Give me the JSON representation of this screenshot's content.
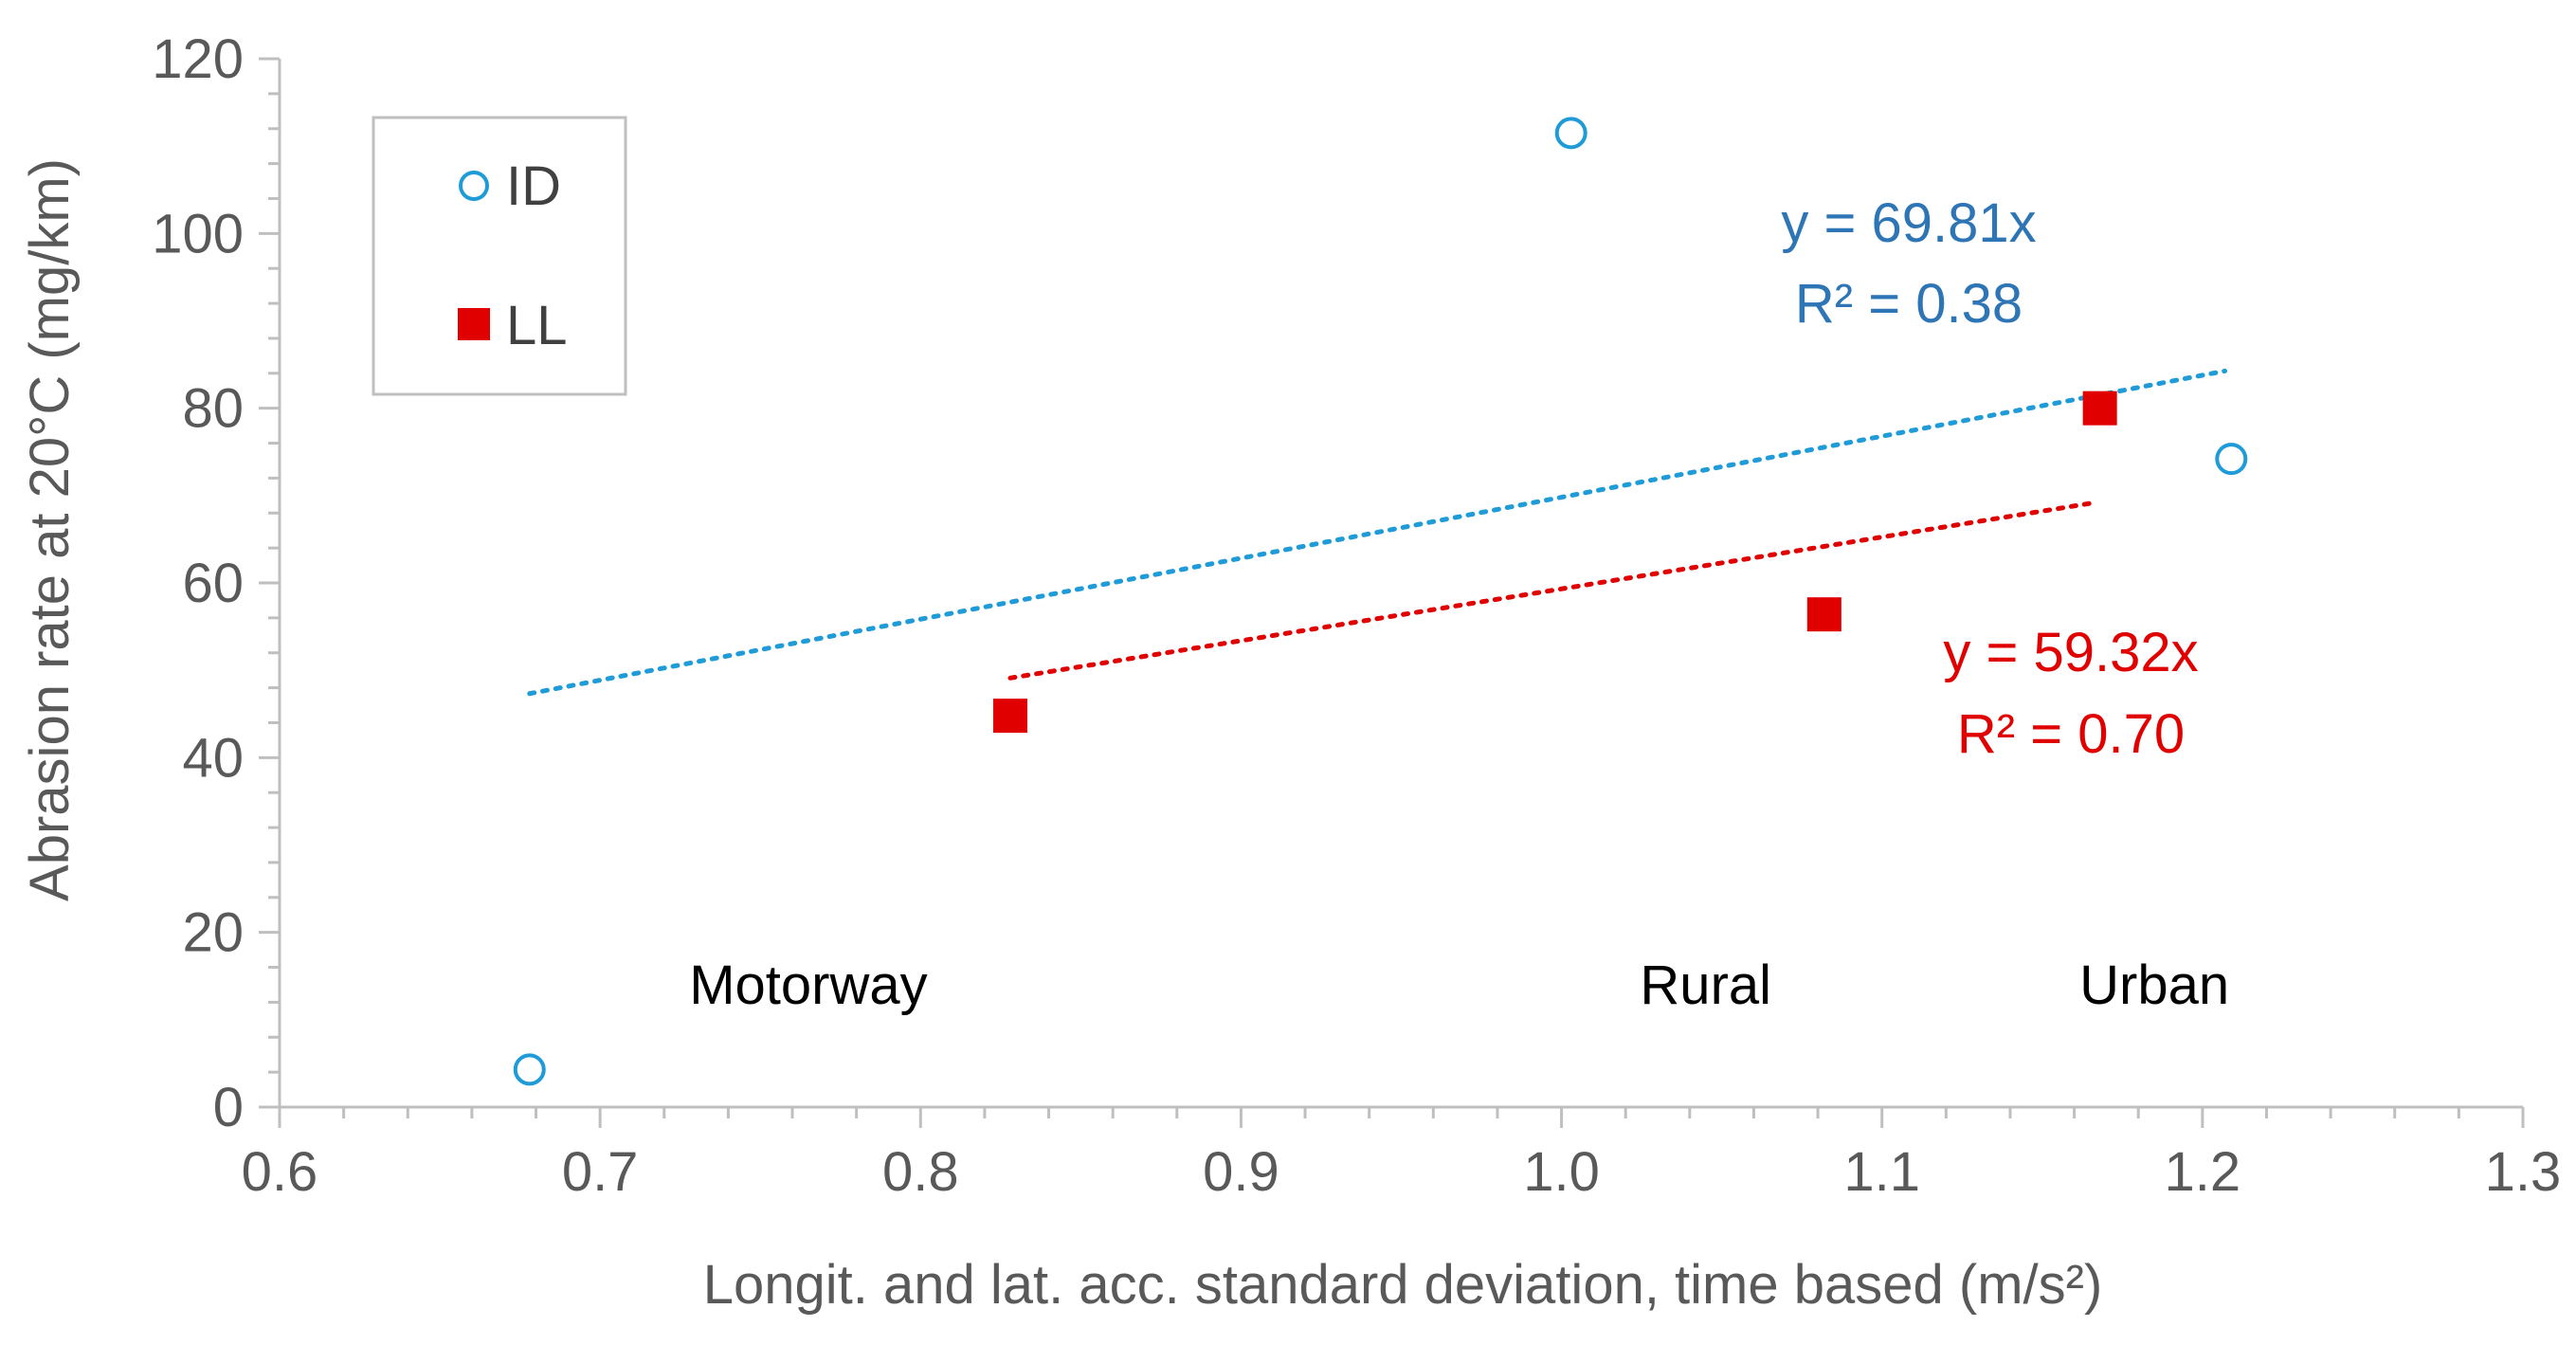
{
  "chart_data": {
    "type": "scatter",
    "title": "",
    "xlabel": "Longit. and lat. acc. standard deviation, time based (m/s²)",
    "ylabel": "Abrasion rate at 20°C (mg/km)",
    "xlim": [
      0.6,
      1.3
    ],
    "ylim": [
      0,
      120
    ],
    "x_ticks": [
      0.6,
      0.7,
      0.8,
      0.9,
      1.0,
      1.1,
      1.2,
      1.3
    ],
    "x_tick_labels": [
      "0.6",
      "0.7",
      "0.8",
      "0.9",
      "1.0",
      "1.1",
      "1.2",
      "1.3"
    ],
    "y_ticks": [
      0,
      20,
      40,
      60,
      80,
      100,
      120
    ],
    "y_tick_labels": [
      "0",
      "20",
      "40",
      "60",
      "80",
      "100",
      "120"
    ],
    "grid": false,
    "legend_position": "top-left",
    "series": [
      {
        "name": "ID",
        "marker": "open-circle",
        "color": "#1f9bd7",
        "points": [
          {
            "x": 0.678,
            "y": 4.3
          },
          {
            "x": 1.003,
            "y": 111.5
          },
          {
            "x": 1.209,
            "y": 74.2
          }
        ],
        "trendline": {
          "slope": 69.81,
          "x_range": [
            0.678,
            1.207
          ],
          "equation": "y = 69.81x",
          "r_squared": "R² = 0.38",
          "label_color": "#2e75b6"
        }
      },
      {
        "name": "LL",
        "marker": "filled-square",
        "color": "#e00000",
        "points": [
          {
            "x": 0.828,
            "y": 44.8
          },
          {
            "x": 1.082,
            "y": 56.4
          },
          {
            "x": 1.168,
            "y": 80.0
          }
        ],
        "trendline": {
          "slope": 59.32,
          "x_range": [
            0.828,
            1.166
          ],
          "equation": "y = 59.32x",
          "r_squared": "R² = 0.70",
          "label_color": "#e00000"
        }
      }
    ],
    "annotations": [
      {
        "text": "Motorway",
        "x": 0.765,
        "y": 14
      },
      {
        "text": "Rural",
        "x": 1.045,
        "y": 14
      },
      {
        "text": "Urban",
        "x": 1.185,
        "y": 14
      }
    ]
  }
}
